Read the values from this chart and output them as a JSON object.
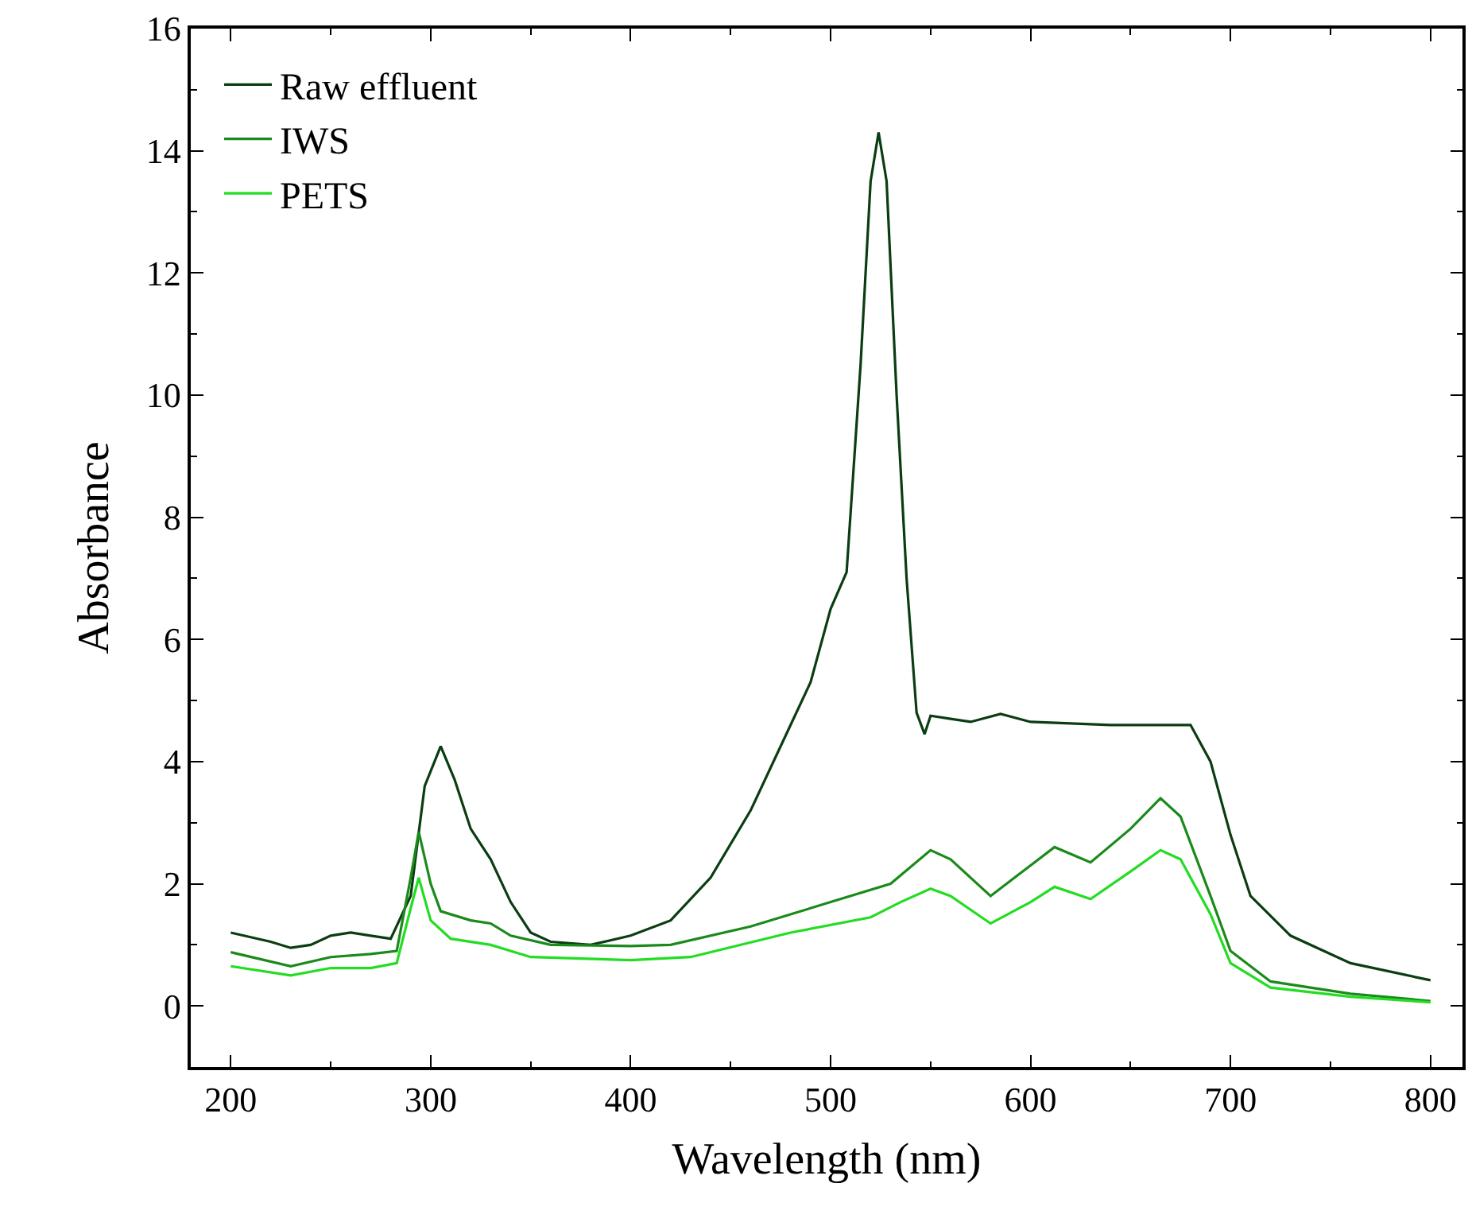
{
  "chart_data": {
    "type": "line",
    "xlabel": "Wavelength (nm)",
    "ylabel": "Absorbance",
    "xlim": [
      180,
      816
    ],
    "ylim": [
      -1,
      16
    ],
    "xticks": [
      200,
      300,
      400,
      500,
      600,
      700,
      800
    ],
    "yticks": [
      0,
      2,
      4,
      6,
      8,
      10,
      12,
      14,
      16
    ],
    "legend": "top left",
    "marker": "none",
    "line_style": "solid",
    "series": [
      {
        "name": "Raw effluent",
        "color": "#0b3d12",
        "x": [
          200,
          220,
          230,
          240,
          250,
          260,
          270,
          280,
          290,
          297,
          305,
          312,
          320,
          330,
          340,
          350,
          360,
          380,
          400,
          420,
          440,
          460,
          480,
          490,
          500,
          508,
          515,
          520,
          524,
          528,
          533,
          538,
          543,
          547,
          550,
          560,
          570,
          585,
          600,
          640,
          680,
          690,
          700,
          710,
          730,
          760,
          800
        ],
        "values": [
          1.2,
          1.05,
          0.95,
          1.0,
          1.15,
          1.2,
          1.15,
          1.1,
          1.8,
          3.6,
          4.25,
          3.7,
          2.9,
          2.4,
          1.7,
          1.2,
          1.05,
          1.0,
          1.15,
          1.4,
          2.1,
          3.2,
          4.6,
          5.3,
          6.5,
          7.1,
          10.5,
          13.5,
          14.3,
          13.5,
          10,
          7,
          4.8,
          4.45,
          4.75,
          4.7,
          4.65,
          4.78,
          4.65,
          4.6,
          4.6,
          4.0,
          2.8,
          1.8,
          1.15,
          0.7,
          0.42
        ]
      },
      {
        "name": "IWS",
        "color": "#1a8a1a",
        "x": [
          200,
          230,
          250,
          270,
          283,
          290,
          294,
          300,
          305,
          320,
          330,
          340,
          360,
          400,
          420,
          460,
          500,
          530,
          550,
          560,
          580,
          600,
          612,
          630,
          650,
          665,
          675,
          690,
          700,
          720,
          760,
          800
        ],
        "values": [
          0.88,
          0.65,
          0.8,
          0.85,
          0.9,
          2.1,
          2.85,
          2.0,
          1.55,
          1.4,
          1.35,
          1.15,
          1.0,
          0.98,
          1.0,
          1.3,
          1.7,
          2.0,
          2.55,
          2.4,
          1.8,
          2.3,
          2.6,
          2.35,
          2.9,
          3.4,
          3.1,
          1.8,
          0.9,
          0.4,
          0.2,
          0.08
        ]
      },
      {
        "name": "PETS",
        "color": "#22dd22",
        "x": [
          200,
          230,
          250,
          270,
          283,
          290,
          294,
          300,
          310,
          330,
          350,
          400,
          430,
          480,
          520,
          535,
          550,
          560,
          580,
          600,
          612,
          630,
          650,
          665,
          675,
          690,
          700,
          720,
          760,
          800
        ],
        "values": [
          0.65,
          0.5,
          0.62,
          0.62,
          0.7,
          1.6,
          2.1,
          1.4,
          1.1,
          1.0,
          0.8,
          0.75,
          0.8,
          1.2,
          1.45,
          1.7,
          1.92,
          1.8,
          1.35,
          1.7,
          1.95,
          1.75,
          2.2,
          2.55,
          2.4,
          1.5,
          0.7,
          0.3,
          0.15,
          0.06
        ]
      }
    ]
  }
}
